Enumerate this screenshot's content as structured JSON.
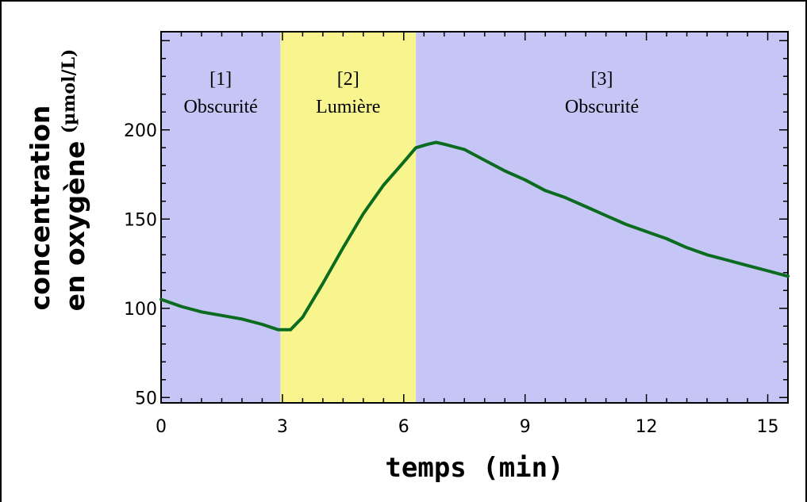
{
  "chart_data": {
    "type": "line",
    "title": "",
    "xlabel": "temps (min)",
    "ylabel": "concentration en oxygène",
    "ylabel_unit": "(µmol/L)",
    "xlim": [
      0,
      15.5
    ],
    "ylim": [
      47,
      255
    ],
    "xticks": [
      0,
      3,
      6,
      9,
      12,
      15
    ],
    "yticks": [
      50,
      100,
      150,
      200
    ],
    "regions": [
      {
        "x0": 0,
        "x1": 2.95,
        "index": "[1]",
        "label": "Obscurité",
        "color": "#c6c6f6"
      },
      {
        "x0": 2.95,
        "x1": 6.3,
        "index": "[2]",
        "label": "Lumière",
        "color": "#f9f58e"
      },
      {
        "x0": 6.3,
        "x1": 15.5,
        "index": "[3]",
        "label": "Obscurité",
        "color": "#c6c6f6"
      }
    ],
    "series": [
      {
        "color": "#0b6b1e",
        "x": [
          0,
          0.5,
          1,
          1.5,
          2,
          2.5,
          2.9,
          3.2,
          3.5,
          4,
          4.5,
          5,
          5.5,
          6,
          6.3,
          6.6,
          6.8,
          7,
          7.5,
          8,
          8.5,
          9,
          9.5,
          10,
          10.5,
          11,
          11.5,
          12,
          12.5,
          13,
          13.5,
          14,
          14.5,
          15,
          15.5
        ],
        "y": [
          105,
          101,
          98,
          96,
          94,
          91,
          88,
          88,
          95,
          114,
          134,
          153,
          169,
          182,
          190,
          192,
          193,
          192,
          189,
          183,
          177,
          172,
          166,
          162,
          157,
          152,
          147,
          143,
          139,
          134,
          130,
          127,
          124,
          121,
          118
        ]
      }
    ]
  }
}
